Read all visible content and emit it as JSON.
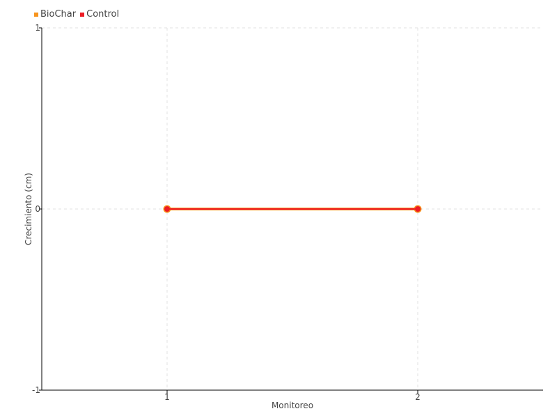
{
  "chart_data": {
    "type": "line",
    "xlabel": "Monitoreo",
    "ylabel": "Crecimiento (cm)",
    "x": [
      1,
      2
    ],
    "xlim": [
      0.5,
      2.5
    ],
    "ylim": [
      -1,
      1
    ],
    "yticks": [
      -1,
      0,
      1
    ],
    "grid": true,
    "legend_placement": "top-left",
    "series": [
      {
        "name": "BioChar",
        "values": [
          0,
          0
        ],
        "color": "#f7941d"
      },
      {
        "name": "Control",
        "values": [
          0,
          0
        ],
        "color": "#ed1c24"
      }
    ]
  }
}
